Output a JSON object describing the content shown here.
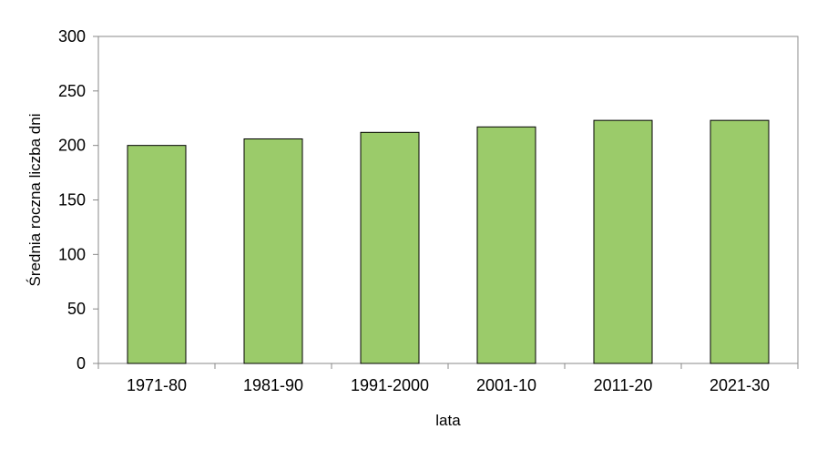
{
  "chart_data": {
    "type": "bar",
    "categories": [
      "1971-80",
      "1981-90",
      "1991-2000",
      "2001-10",
      "2011-20",
      "2021-30"
    ],
    "values": [
      200,
      206,
      212,
      217,
      223,
      223
    ],
    "xlabel": "lata",
    "ylabel": "Średnia roczna liczba dni",
    "ylim": [
      0,
      300
    ],
    "yticks": [
      0,
      50,
      100,
      150,
      200,
      250,
      300
    ],
    "grid": false,
    "legend": "none",
    "colors": {
      "bar_fill": "#9bcb6a",
      "bar_stroke": "#000000",
      "axis": "#888888"
    }
  }
}
